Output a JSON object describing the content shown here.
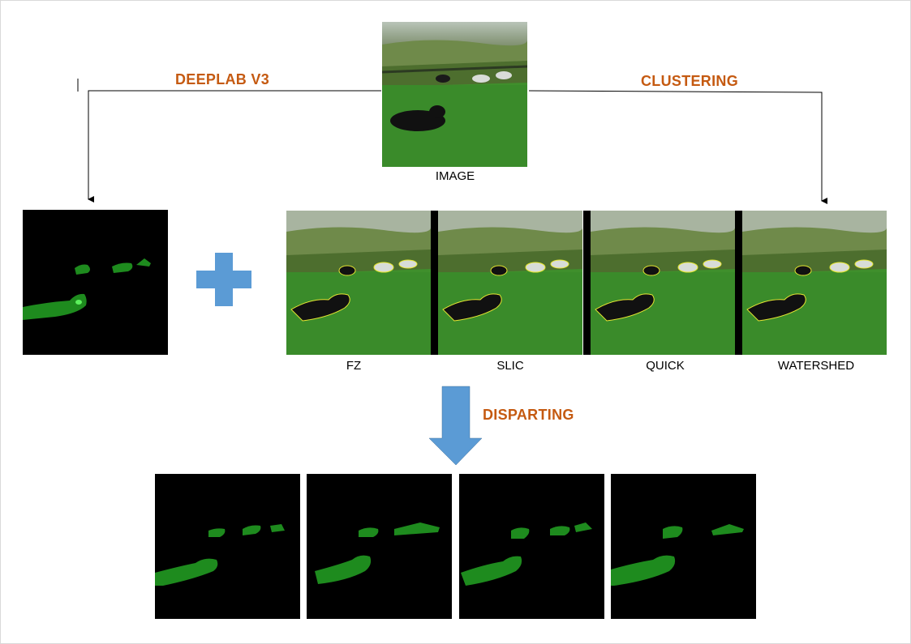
{
  "labels": {
    "deeplab": "DEEPLAB V3",
    "clustering": "CLUSTERING",
    "disparting": "DISPARTING",
    "image": "IMAGE"
  },
  "methods": [
    "FZ",
    "SLIC",
    "QUICK",
    "WATERSHED"
  ],
  "colors": {
    "label_accent": "#c55a11",
    "arrow_blue": "#5b9bd5",
    "mask_green": "#1e8b1e",
    "contour_yellow": "#e6e632"
  }
}
